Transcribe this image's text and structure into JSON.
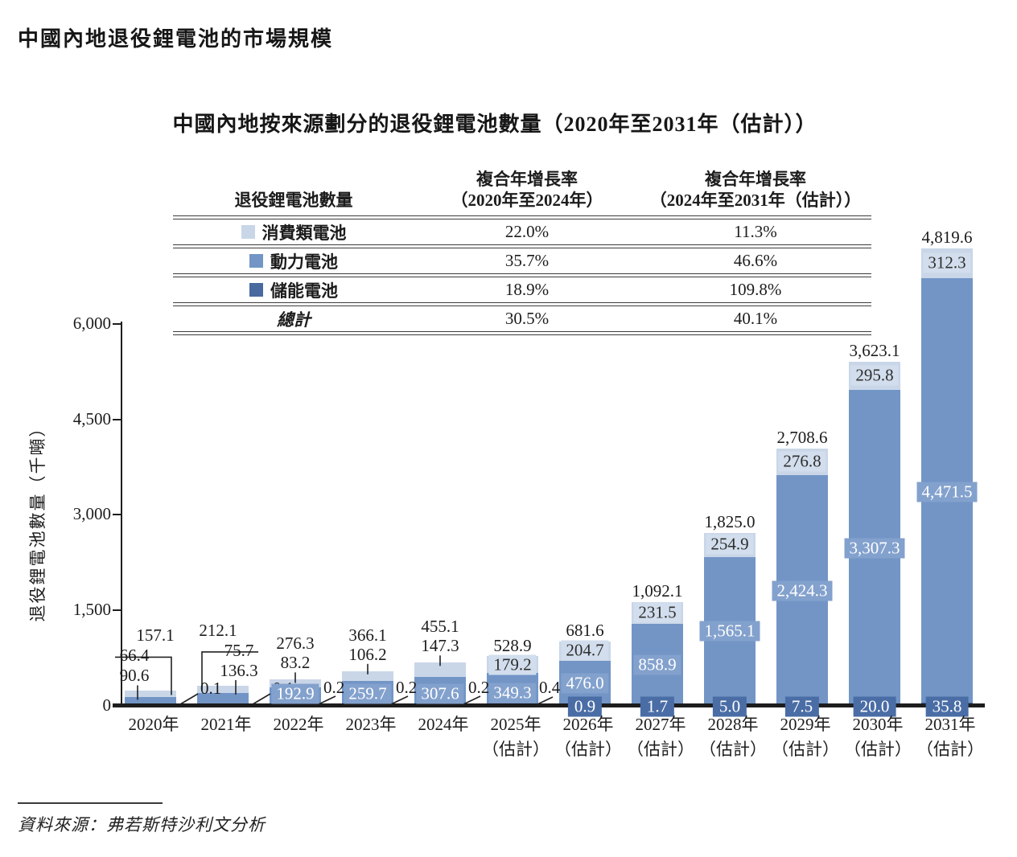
{
  "page": {
    "main_title": "中國內地退役鋰電池的市場規模",
    "source_note": "資料來源：弗若斯特沙利文分析"
  },
  "legend_table": {
    "col1_header": "退役鋰電池數量",
    "col2_header_line1": "複合年增長率",
    "col2_header_line2": "（2020年至2024年）",
    "col3_header_line1": "複合年增長率",
    "col3_header_line2": "（2024年至2031年（估計））",
    "rows": [
      {
        "label": "消費類電池",
        "swatch": "#c9d6e8",
        "cagr_2020_2024": "22.0%",
        "cagr_2024_2031": "11.3%"
      },
      {
        "label": "動力電池",
        "swatch": "#7295c6",
        "cagr_2020_2024": "35.7%",
        "cagr_2024_2031": "46.6%"
      },
      {
        "label": "儲能電池",
        "swatch": "#49699f",
        "cagr_2020_2024": "18.9%",
        "cagr_2024_2031": "109.8%"
      }
    ],
    "total_row": {
      "label": "總計",
      "cagr_2020_2024": "30.5%",
      "cagr_2024_2031": "40.1%"
    }
  },
  "chart_data": {
    "type": "bar",
    "stacked": true,
    "title": "中國內地按來源劃分的退役鋰電池數量（2020年至2031年（估計））",
    "ylabel": "退役鋰電池數量（千噸）",
    "unit": "千噸",
    "ylim": [
      0,
      6000
    ],
    "grid": false,
    "legend_position": "table-top",
    "y_ticks": [
      0,
      1500,
      3000,
      4500,
      6000
    ],
    "y_tick_labels": [
      "0",
      "1,500",
      "3,000",
      "4,500",
      "6,000"
    ],
    "categories": [
      "2020年",
      "2021年",
      "2022年",
      "2023年",
      "2024年",
      "2025年",
      "2026年",
      "2027年",
      "2028年",
      "2029年",
      "2030年",
      "2031年"
    ],
    "estimated_suffix": "（估計）",
    "estimated_from_index": 5,
    "series": [
      {
        "name": "消費類電池",
        "color": "#c9d6e8",
        "values": [
          66.4,
          75.7,
          83.2,
          106.2,
          147.3,
          179.2,
          204.7,
          231.5,
          254.9,
          276.8,
          295.8,
          312.3
        ]
      },
      {
        "name": "動力電池",
        "color": "#7295c6",
        "values": [
          90.6,
          136.3,
          192.9,
          259.7,
          307.6,
          349.3,
          476.0,
          858.9,
          1565.1,
          2424.3,
          3307.3,
          4471.5
        ]
      },
      {
        "name": "儲能電池",
        "color": "#49699f",
        "values": [
          0.1,
          0.1,
          0.2,
          0.2,
          0.2,
          0.4,
          0.9,
          1.7,
          5.0,
          7.5,
          20.0,
          35.8
        ]
      }
    ],
    "totals": [
      157.1,
      212.1,
      276.3,
      366.1,
      455.1,
      528.9,
      681.6,
      1092.1,
      1825.0,
      2708.6,
      3623.1,
      4819.6
    ],
    "total_labels": [
      "157.1",
      "212.1",
      "276.3",
      "366.1",
      "455.1",
      "528.9",
      "681.6",
      "1,092.1",
      "1,825.0",
      "2,708.6",
      "3,623.1",
      "4,819.6"
    ],
    "consumer_labels": [
      "66.4",
      "75.7",
      "83.2",
      "106.2",
      "147.3",
      "179.2",
      "204.7",
      "231.5",
      "254.9",
      "276.8",
      "295.8",
      "312.3"
    ],
    "power_labels": [
      "90.6",
      "136.3",
      "192.9",
      "259.7",
      "307.6",
      "349.3",
      "476.0",
      "858.9",
      "1,565.1",
      "2,424.3",
      "3,307.3",
      "4,471.5"
    ],
    "storage_labels": [
      "0.1",
      "0.1",
      "0.2",
      "0.2",
      "0.2",
      "0.4",
      "0.9",
      "1.7",
      "5.0",
      "7.5",
      "20.0",
      "35.8"
    ],
    "label_styles": [
      "callout",
      "callout",
      "stack",
      "stack",
      "stack",
      "stackbadge",
      "inside",
      "inside",
      "inside",
      "inside",
      "inside",
      "inside"
    ]
  }
}
